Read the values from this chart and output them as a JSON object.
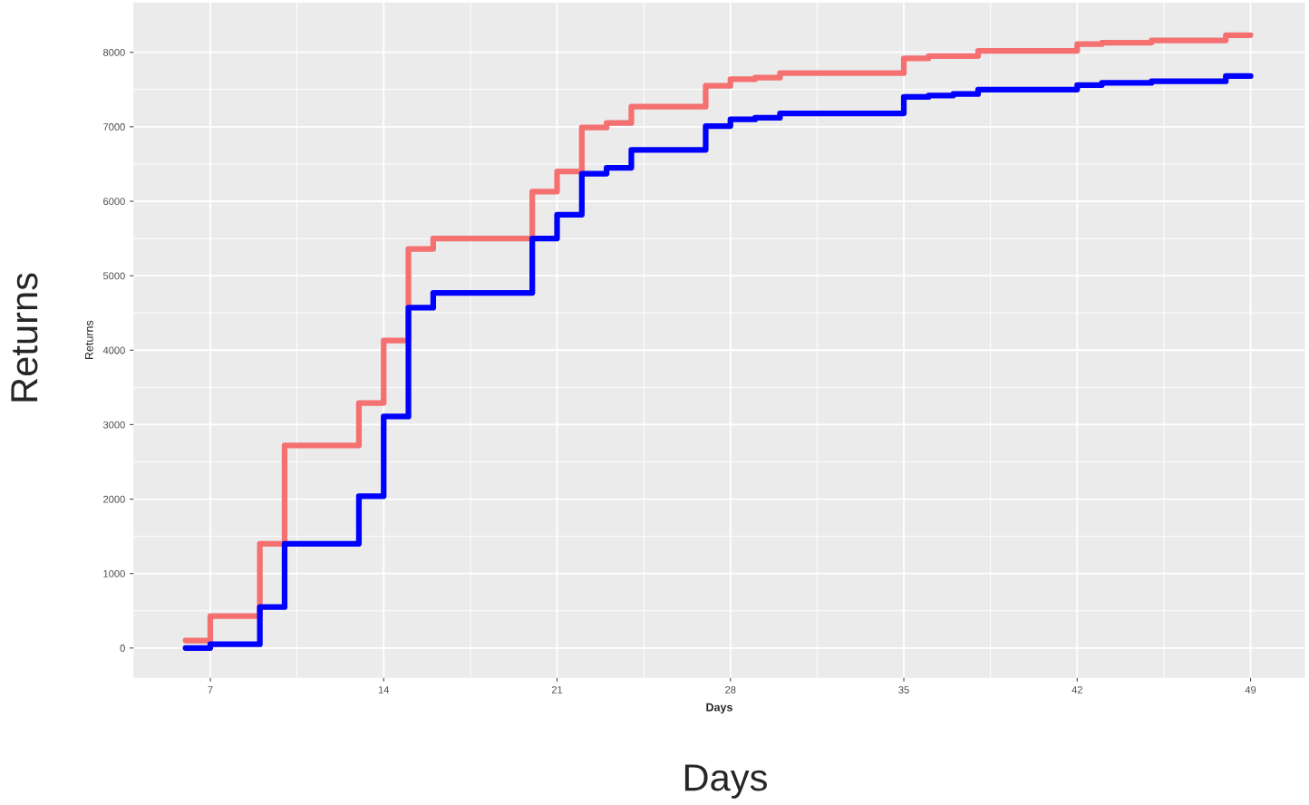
{
  "chart_data": {
    "type": "step",
    "xlabel": "Days",
    "ylabel": "Returns",
    "annotations": [
      "Returns",
      "Days"
    ],
    "x": [
      6,
      7,
      9,
      10,
      13,
      14,
      15,
      16,
      20,
      21,
      22,
      23,
      24,
      27,
      28,
      29,
      30,
      35,
      36,
      37,
      38,
      42,
      43,
      45,
      48,
      49
    ],
    "series": [
      {
        "color": "#f57070",
        "values": [
          100,
          430,
          1400,
          2720,
          3290,
          4130,
          5360,
          5500,
          6130,
          6400,
          6990,
          7050,
          7270,
          7550,
          7640,
          7660,
          7720,
          7920,
          7950,
          7950,
          8020,
          8110,
          8130,
          8160,
          8230,
          8230
        ]
      },
      {
        "color": "#0000ff",
        "values": [
          0,
          50,
          550,
          1400,
          2040,
          3110,
          4570,
          4770,
          5500,
          5820,
          6370,
          6450,
          6690,
          7010,
          7100,
          7120,
          7180,
          7400,
          7420,
          7440,
          7500,
          7560,
          7590,
          7610,
          7680,
          7680
        ]
      }
    ],
    "xlim": [
      3.9,
      51.2
    ],
    "ylim": [
      -400,
      8670
    ],
    "xticks": [
      7,
      14,
      21,
      28,
      35,
      42,
      49
    ],
    "yticks": [
      0,
      1000,
      2000,
      3000,
      4000,
      5000,
      6000,
      7000,
      8000
    ],
    "grid": true,
    "legend": false,
    "line_style": "solid",
    "marker": "none"
  }
}
